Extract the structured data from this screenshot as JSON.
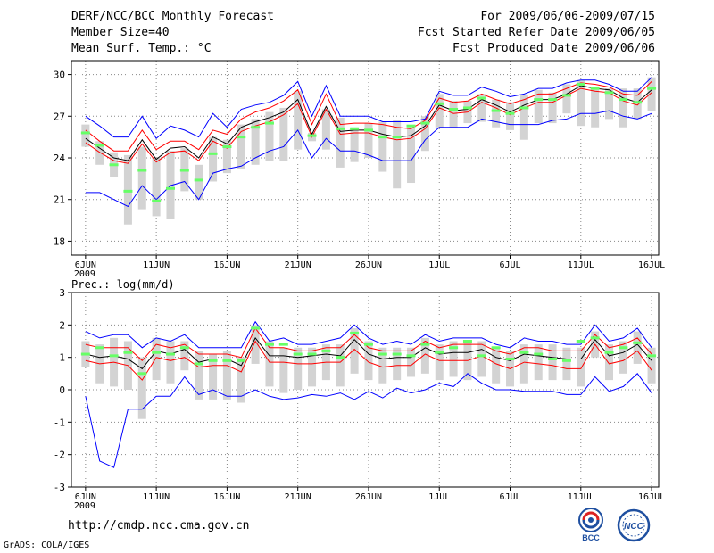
{
  "header": {
    "title": "DERF/NCC/BCC Monthly Forecast",
    "member_size": "Member Size=40",
    "variable": "Mean Surf. Temp.: °C",
    "forecast_range": "For 2009/06/06-2009/07/15",
    "start_refer": "Fcst Started Refer Date 2009/06/05",
    "produced": "Fcst Produced Date 2009/06/06"
  },
  "footer": {
    "url": "http://cmdp.ncc.cma.gov.cn",
    "credit": "GrADS: COLA/IGES"
  },
  "logos": {
    "bcc": "BCC",
    "ncc": "NCC"
  },
  "colors": {
    "max_min": "#0000ff",
    "mean": "#000000",
    "median": "#ff0000",
    "spread": "#d3d3d3",
    "obs": "#66ff66"
  },
  "chart_data": [
    {
      "type": "line",
      "title": "Mean Surf. Temp.: °C",
      "ylim": [
        17,
        31
      ],
      "yticks": [
        18,
        21,
        24,
        27,
        30
      ],
      "xlim": [
        -1,
        40.5
      ],
      "xtick_positions": [
        0,
        5,
        10,
        15,
        20,
        25,
        30,
        35,
        40
      ],
      "xtick_labels": [
        "6JUN",
        "11JUN",
        "16JUN",
        "21JUN",
        "26JUN",
        "1JUL",
        "6JUL",
        "11JUL",
        "16JUL"
      ],
      "year_label": "2009",
      "grid": true,
      "series": [
        {
          "name": "max",
          "values": [
            27,
            26.3,
            25.5,
            25.5,
            27,
            25.4,
            26.3,
            26,
            25.5,
            27.2,
            26.2,
            27.5,
            27.8,
            28,
            28.5,
            29.5,
            27,
            29.2,
            27,
            27,
            27,
            26.6,
            26.6,
            26.6,
            26.8,
            28.8,
            28.5,
            28.5,
            29.1,
            28.8,
            28.4,
            28.6,
            29,
            29,
            29.4,
            29.6,
            29.6,
            29.3,
            28.8,
            28.8,
            29.8
          ]
        },
        {
          "name": "upper",
          "values": [
            26,
            25.2,
            24.5,
            24.5,
            26,
            24.6,
            25.2,
            25.2,
            24.6,
            26,
            25.7,
            26.8,
            27.3,
            27.6,
            28.1,
            28.9,
            26.4,
            28.6,
            26.4,
            26.5,
            26.5,
            26.4,
            26.2,
            26.1,
            26.7,
            28.3,
            28,
            28.1,
            28.6,
            28.2,
            27.9,
            28.2,
            28.6,
            28.6,
            29,
            29.4,
            29.3,
            29.1,
            28.6,
            28.5,
            29.5
          ]
        },
        {
          "name": "mean",
          "values": [
            25.4,
            24.7,
            24,
            23.8,
            25.3,
            23.9,
            24.7,
            24.8,
            24,
            25.5,
            25,
            26.2,
            26.6,
            26.9,
            27.3,
            28.2,
            25.7,
            27.7,
            25.9,
            26,
            26,
            25.7,
            25.5,
            25.6,
            26.3,
            27.8,
            27.4,
            27.5,
            28.2,
            27.8,
            27.3,
            27.8,
            28.2,
            28.2,
            28.6,
            29.2,
            29,
            28.9,
            28.3,
            28,
            28.9
          ]
        },
        {
          "name": "median",
          "values": [
            25.1,
            24.4,
            23.8,
            23.6,
            25,
            23.7,
            24.4,
            24.5,
            23.8,
            25.2,
            24.7,
            25.9,
            26.3,
            26.6,
            27.1,
            27.9,
            25.5,
            27.5,
            25.7,
            25.8,
            25.8,
            25.5,
            25.3,
            25.4,
            26.1,
            27.6,
            27.2,
            27.3,
            28,
            27.6,
            27.1,
            27.6,
            28,
            28,
            28.5,
            29,
            28.8,
            28.7,
            28.1,
            27.8,
            28.7
          ]
        },
        {
          "name": "min",
          "values": [
            21.5,
            21.5,
            21,
            20.5,
            22,
            21,
            22,
            22.3,
            21,
            22.9,
            23.2,
            23.4,
            24,
            24.5,
            24.8,
            26,
            24,
            25.4,
            24.5,
            24.5,
            24.2,
            23.8,
            23.8,
            23.8,
            25.3,
            26.2,
            26.2,
            26.2,
            26.8,
            26.6,
            26.4,
            26.4,
            26.4,
            26.7,
            26.8,
            27.2,
            27.2,
            27.4,
            27,
            26.8,
            27.2
          ]
        }
      ],
      "spread_bars": [
        [
          24.8,
          26.4
        ],
        [
          23.5,
          25.2
        ],
        [
          22.6,
          24.4
        ],
        [
          19.2,
          24.2
        ],
        [
          20.3,
          24.8
        ],
        [
          19.8,
          24
        ],
        [
          19.6,
          24.5
        ],
        [
          21.6,
          24.7
        ],
        [
          21,
          23.5
        ],
        [
          22.3,
          25.5
        ],
        [
          22.9,
          25.3
        ],
        [
          23.2,
          26.4
        ],
        [
          23.5,
          26.8
        ],
        [
          23.8,
          27.3
        ],
        [
          23.8,
          27.6
        ],
        [
          24.6,
          28.8
        ],
        [
          25.2,
          25.8
        ],
        [
          24.6,
          27.5
        ],
        [
          23.3,
          26.9
        ],
        [
          23.7,
          26.2
        ],
        [
          24,
          26.5
        ],
        [
          23,
          26.6
        ],
        [
          21.8,
          26.7
        ],
        [
          22.2,
          26.2
        ],
        [
          24.5,
          27
        ],
        [
          26.2,
          28.6
        ],
        [
          26.2,
          28.1
        ],
        [
          26.5,
          28.1
        ],
        [
          26.6,
          28.6
        ],
        [
          26.2,
          28.2
        ],
        [
          26,
          28
        ],
        [
          25.3,
          28.5
        ],
        [
          26.5,
          28.9
        ],
        [
          26.5,
          28.7
        ],
        [
          27.2,
          29.3
        ],
        [
          26.3,
          29.6
        ],
        [
          26.2,
          29.1
        ],
        [
          26.8,
          29
        ],
        [
          26.2,
          29
        ],
        [
          26.8,
          29
        ],
        [
          27.4,
          29.8
        ]
      ],
      "observed": [
        25.8,
        24.9,
        23.5,
        21.6,
        23.1,
        20.9,
        21.8,
        23.1,
        22.4,
        24.3,
        24.8,
        25.5,
        26.2,
        26.5,
        null,
        null,
        25.6,
        null,
        26.1,
        26.1,
        26,
        25.5,
        25.5,
        26.3,
        26.5,
        27.9,
        27.5,
        27.6,
        28.3,
        27.4,
        27.2,
        27.6,
        28.2,
        28.2,
        28.5,
        29.3,
        29,
        28.7,
        28.2,
        28,
        29
      ]
    },
    {
      "type": "line",
      "title": "Prec.: log(mm/d)",
      "ylim": [
        -3,
        3
      ],
      "yticks": [
        -3,
        -2,
        -1,
        0,
        1,
        2,
        3
      ],
      "xlim": [
        -1,
        40.5
      ],
      "xtick_positions": [
        0,
        5,
        10,
        15,
        20,
        25,
        30,
        35,
        40
      ],
      "xtick_labels": [
        "6JUN",
        "11JUN",
        "16JUN",
        "21JUN",
        "26JUN",
        "1JUL",
        "6JUL",
        "11JUL",
        "16JUL"
      ],
      "year_label": "2009",
      "grid": true,
      "series": [
        {
          "name": "max",
          "values": [
            1.8,
            1.6,
            1.7,
            1.7,
            1.3,
            1.6,
            1.5,
            1.7,
            1.3,
            1.3,
            1.3,
            1.3,
            2.1,
            1.5,
            1.6,
            1.4,
            1.4,
            1.5,
            1.6,
            2,
            1.6,
            1.4,
            1.5,
            1.4,
            1.7,
            1.5,
            1.6,
            1.6,
            1.6,
            1.4,
            1.3,
            1.6,
            1.5,
            1.5,
            1.4,
            1.4,
            2,
            1.5,
            1.6,
            1.9,
            1.3
          ]
        },
        {
          "name": "upper",
          "values": [
            1.4,
            1.3,
            1.3,
            1.3,
            0.9,
            1.4,
            1.3,
            1.4,
            1.1,
            1.1,
            1.1,
            1,
            1.9,
            1.3,
            1.3,
            1.2,
            1.2,
            1.3,
            1.3,
            1.7,
            1.3,
            1.2,
            1.2,
            1.2,
            1.5,
            1.3,
            1.4,
            1.4,
            1.4,
            1.2,
            1.1,
            1.3,
            1.3,
            1.2,
            1.2,
            1.2,
            1.7,
            1.3,
            1.4,
            1.6,
            1.1
          ]
        },
        {
          "name": "mean",
          "values": [
            1.1,
            1,
            1.05,
            0.95,
            0.65,
            1.2,
            1.1,
            1.25,
            0.85,
            0.95,
            0.95,
            0.75,
            1.6,
            1.05,
            1.05,
            1,
            1.05,
            1.1,
            1.05,
            1.55,
            1.1,
            0.95,
            1,
            1,
            1.3,
            1.1,
            1.15,
            1.15,
            1.25,
            1,
            0.9,
            1.1,
            1.05,
            1,
            0.95,
            0.95,
            1.55,
            1.05,
            1.15,
            1.4,
            0.9
          ]
        },
        {
          "name": "median",
          "values": [
            0.9,
            0.8,
            0.85,
            0.75,
            0.3,
            1,
            0.9,
            1,
            0.7,
            0.75,
            0.75,
            0.55,
            1.5,
            0.85,
            0.85,
            0.8,
            0.8,
            0.85,
            0.85,
            1.25,
            0.85,
            0.7,
            0.75,
            0.75,
            1.1,
            0.9,
            0.9,
            0.9,
            1.05,
            0.8,
            0.65,
            0.85,
            0.8,
            0.75,
            0.65,
            0.65,
            1.4,
            0.8,
            0.9,
            1.2,
            0.6
          ]
        },
        {
          "name": "min",
          "values": [
            -0.2,
            -2.2,
            -2.4,
            -0.6,
            -0.6,
            -0.2,
            -0.2,
            0.4,
            -0.15,
            0,
            -0.2,
            -0.2,
            0,
            -0.2,
            -0.3,
            -0.25,
            -0.15,
            -0.2,
            -0.1,
            -0.3,
            -0.05,
            -0.25,
            0.05,
            -0.1,
            0,
            0.2,
            0.1,
            0.5,
            0.2,
            0,
            0,
            -0.05,
            -0.05,
            -0.05,
            -0.15,
            -0.15,
            0.4,
            -0.05,
            0.1,
            0.5,
            -0.1
          ]
        }
      ],
      "spread_bars": [
        [
          0.7,
          1.5
        ],
        [
          0.2,
          1.4
        ],
        [
          0.1,
          1.6
        ],
        [
          0,
          1.5
        ],
        [
          -0.9,
          1
        ],
        [
          0.3,
          1.6
        ],
        [
          0.2,
          1.5
        ],
        [
          0.6,
          1.5
        ],
        [
          -0.3,
          1.2
        ],
        [
          -0.3,
          1.1
        ],
        [
          -0.3,
          1.2
        ],
        [
          -0.4,
          1
        ],
        [
          0.8,
          2
        ],
        [
          0.1,
          1.5
        ],
        [
          -0.1,
          1.3
        ],
        [
          0,
          1.3
        ],
        [
          0.1,
          1.3
        ],
        [
          0.3,
          1.4
        ],
        [
          0.1,
          1.4
        ],
        [
          0.5,
          1.9
        ],
        [
          0.3,
          1.5
        ],
        [
          0.2,
          1.3
        ],
        [
          0.3,
          1.3
        ],
        [
          0.4,
          1.3
        ],
        [
          0.5,
          1.6
        ],
        [
          0.3,
          1.4
        ],
        [
          0.4,
          1.5
        ],
        [
          0.3,
          1.5
        ],
        [
          0.4,
          1.5
        ],
        [
          0.2,
          1.3
        ],
        [
          0.1,
          1.2
        ],
        [
          0.2,
          1.4
        ],
        [
          0.3,
          1.4
        ],
        [
          0.3,
          1.4
        ],
        [
          0.3,
          1.3
        ],
        [
          0.1,
          1.3
        ],
        [
          1,
          1.8
        ],
        [
          0.3,
          1.4
        ],
        [
          0.5,
          1.5
        ],
        [
          0.8,
          1.8
        ],
        [
          0.2,
          1.3
        ]
      ],
      "observed": [
        1.1,
        1.3,
        1.05,
        1.15,
        0.5,
        1.15,
        1.1,
        1.3,
        0.8,
        0.9,
        0.9,
        0.9,
        1.9,
        1.4,
        1.4,
        1.1,
        1.1,
        1.2,
        1,
        1.75,
        1.4,
        1.1,
        1.1,
        1.05,
        1.4,
        1.15,
        1.3,
        1.5,
        1.05,
        1.3,
        0.95,
        1.15,
        1.1,
        0.95,
        0.9,
        1.5,
        1.6,
        1.15,
        1.3,
        1.45,
        1.05
      ]
    }
  ]
}
